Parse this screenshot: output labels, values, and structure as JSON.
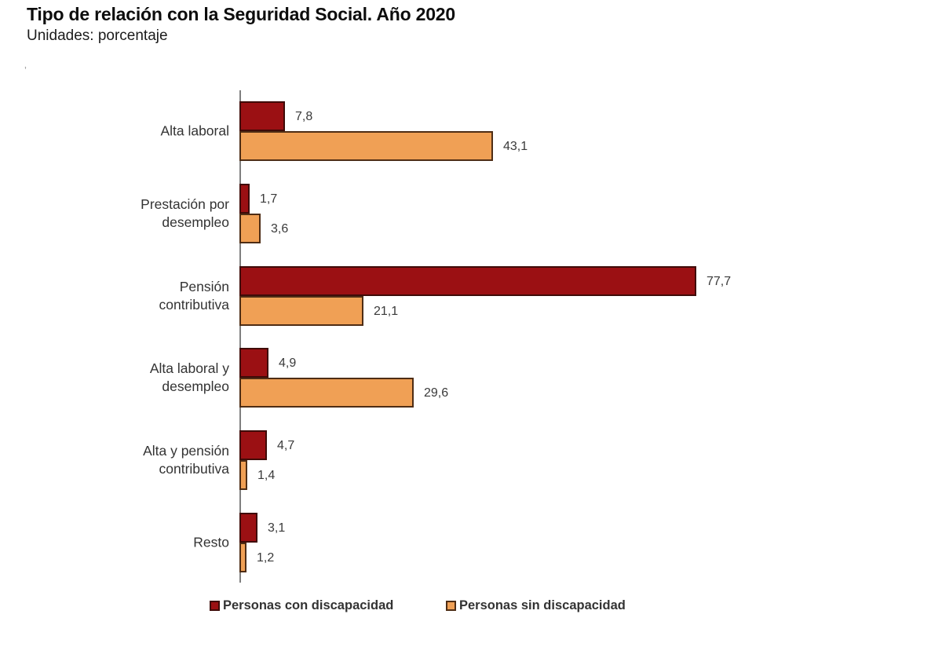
{
  "header": {
    "title": "Tipo de relación con la Seguridad Social. Año 2020",
    "units": "Unidades: porcentaje",
    "stray_mark": "’"
  },
  "chart_data": {
    "type": "bar",
    "orientation": "horizontal",
    "title": "Tipo de relación con la Seguridad Social. Año 2020",
    "units_label": "Unidades: porcentaje",
    "grid": false,
    "x_axis_tick_labels_visible": false,
    "xlim": [
      0,
      100
    ],
    "legend_position": "bottom",
    "value_format": "decimal-comma",
    "axis_color": "#7f7f7f",
    "text_color": "#3a3a3a",
    "categories": [
      "Alta laboral",
      "Prestación por desempleo",
      "Pensión contributiva",
      "Alta laboral y desempleo",
      "Alta y pensión contributiva",
      "Resto"
    ],
    "categories_wrapped": [
      [
        "Alta laboral"
      ],
      [
        "Prestación por",
        "desempleo"
      ],
      [
        "Pensión",
        "contributiva"
      ],
      [
        "Alta laboral y",
        "desempleo"
      ],
      [
        "Alta y pensión",
        "contributiva"
      ],
      [
        "Resto"
      ]
    ],
    "series": [
      {
        "name": "Personas con discapacidad",
        "color": "#9b1013",
        "border_color": "#3f0b08",
        "values": [
          7.8,
          1.7,
          77.7,
          4.9,
          4.7,
          3.1
        ],
        "value_labels": [
          "7,8",
          "1,7",
          "77,7",
          "4,9",
          "4,7",
          "3,1"
        ]
      },
      {
        "name": "Personas sin discapacidad",
        "color": "#f0a055",
        "border_color": "#4e2d15",
        "values": [
          43.1,
          3.6,
          21.1,
          29.6,
          1.4,
          1.2
        ],
        "value_labels": [
          "43,1",
          "3,6",
          "21,1",
          "29,6",
          "1,4",
          "1,2"
        ]
      }
    ]
  }
}
